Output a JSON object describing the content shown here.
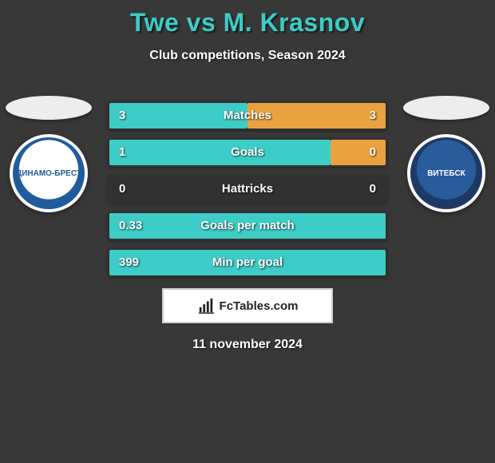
{
  "header": {
    "title": "Twe vs M. Krasnov",
    "subtitle": "Club competitions, Season 2024"
  },
  "colors": {
    "accent_left": "#3eccc6",
    "accent_right": "#e9a23f",
    "background": "#383838",
    "title_color": "#3eccc6"
  },
  "left_player": {
    "club_short": "ДИНАМО-БРЕСТ",
    "badge_inner": "#ffffff",
    "badge_ring": "#205c9c"
  },
  "right_player": {
    "club_short": "ВИТЕБСК",
    "badge_inner": "#2a5b9c",
    "badge_ring": "#1d3a66"
  },
  "stats": [
    {
      "label": "Matches",
      "left_val": "3",
      "right_val": "3",
      "left_pct": 50,
      "right_pct": 50
    },
    {
      "label": "Goals",
      "left_val": "1",
      "right_val": "0",
      "left_pct": 80,
      "right_pct": 20
    },
    {
      "label": "Hattricks",
      "left_val": "0",
      "right_val": "0",
      "left_pct": 0,
      "right_pct": 0
    },
    {
      "label": "Goals per match",
      "left_val": "0.33",
      "right_val": "",
      "left_pct": 100,
      "right_pct": 0
    },
    {
      "label": "Min per goal",
      "left_val": "399",
      "right_val": "",
      "left_pct": 100,
      "right_pct": 0
    }
  ],
  "brand": {
    "text": "FcTables.com"
  },
  "footer": {
    "date": "11 november 2024"
  }
}
